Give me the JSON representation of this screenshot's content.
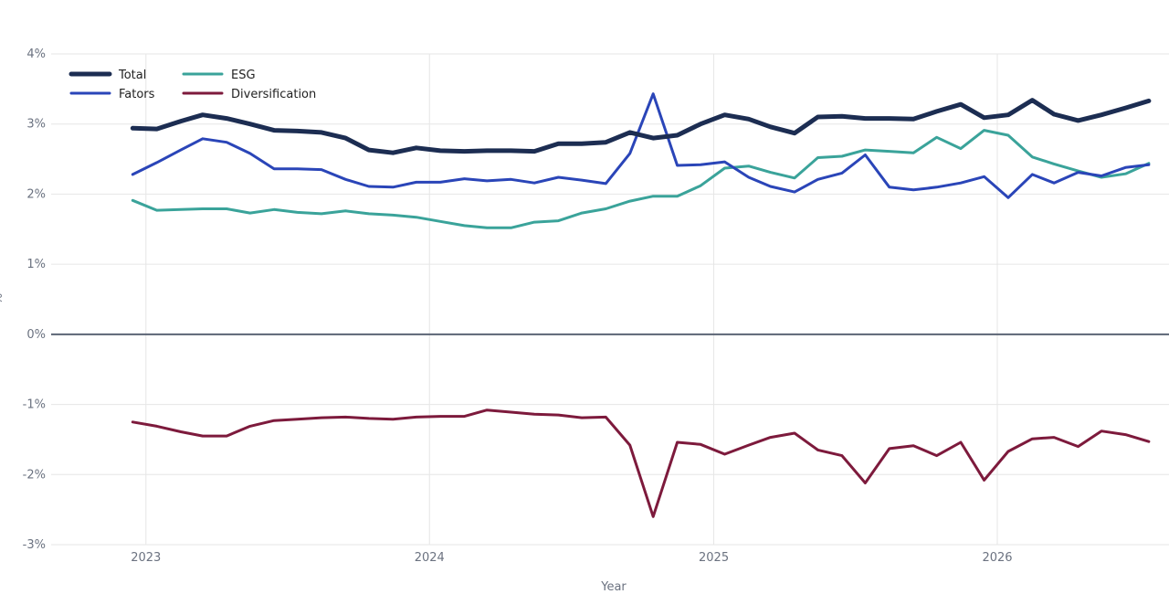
{
  "chart_data": {
    "type": "line",
    "xlabel": "Year",
    "ylabel": "%",
    "ylim": [
      -3,
      4
    ],
    "xlim": [
      "2022-09-01",
      "2026-08-10"
    ],
    "yticks": [
      -3,
      -2,
      -1,
      0,
      1,
      2,
      3,
      4
    ],
    "ytick_labels": [
      "-3%",
      "-2%",
      "-1%",
      "0%",
      "1%",
      "2%",
      "3%",
      "4%"
    ],
    "xticks": [
      "2023-01-01",
      "2024-01-01",
      "2025-01-01",
      "2026-01-01"
    ],
    "xtick_labels": [
      "2023",
      "2024",
      "2025",
      "2026"
    ],
    "grid": true,
    "legend_position": "top-left",
    "x": [
      "2022-12",
      "2023-01",
      "2023-02",
      "2023-03",
      "2023-04",
      "2023-05",
      "2023-06",
      "2023-07",
      "2023-08",
      "2023-09",
      "2023-10",
      "2023-11",
      "2023-12",
      "2024-01",
      "2024-02",
      "2024-03",
      "2024-04",
      "2024-05",
      "2024-06",
      "2024-07",
      "2024-08",
      "2024-09",
      "2024-10",
      "2024-11",
      "2024-12",
      "2025-01",
      "2025-02",
      "2025-03",
      "2025-04",
      "2025-05",
      "2025-06",
      "2025-07",
      "2025-08",
      "2025-09",
      "2025-10",
      "2025-11",
      "2025-12",
      "2026-01",
      "2026-02",
      "2026-03",
      "2026-04",
      "2026-05",
      "2026-06",
      "2026-07"
    ],
    "series": [
      {
        "name": "Total",
        "color": "#1c2d52",
        "width": 5,
        "values": [
          2.94,
          2.93,
          3.04,
          3.13,
          3.08,
          3.0,
          2.91,
          2.9,
          2.88,
          2.8,
          2.63,
          2.59,
          2.66,
          2.62,
          2.61,
          2.62,
          2.62,
          2.61,
          2.72,
          2.72,
          2.74,
          2.88,
          2.8,
          2.84,
          3.0,
          3.13,
          3.07,
          2.96,
          2.87,
          3.1,
          3.11,
          3.08,
          3.08,
          3.07,
          3.18,
          3.28,
          3.09,
          3.13,
          3.34,
          3.14,
          3.05,
          3.13,
          3.23,
          3.33
        ]
      },
      {
        "name": "Fators",
        "color": "#2a45b8",
        "width": 3,
        "values": [
          2.28,
          2.45,
          2.63,
          2.79,
          2.74,
          2.58,
          2.36,
          2.36,
          2.35,
          2.21,
          2.11,
          2.1,
          2.17,
          2.17,
          2.22,
          2.19,
          2.21,
          2.16,
          2.24,
          2.2,
          2.15,
          2.58,
          3.43,
          2.41,
          2.42,
          2.46,
          2.24,
          2.11,
          2.03,
          2.21,
          2.3,
          2.56,
          2.1,
          2.06,
          2.1,
          2.16,
          2.25,
          1.95,
          2.28,
          2.16,
          2.31,
          2.26,
          2.38,
          2.42
        ]
      },
      {
        "name": "ESG",
        "color": "#3aa39a",
        "width": 3,
        "values": [
          1.91,
          1.77,
          1.78,
          1.79,
          1.79,
          1.73,
          1.78,
          1.74,
          1.72,
          1.76,
          1.72,
          1.7,
          1.67,
          1.61,
          1.55,
          1.52,
          1.52,
          1.6,
          1.62,
          1.73,
          1.79,
          1.9,
          1.97,
          1.97,
          2.12,
          2.37,
          2.4,
          2.31,
          2.23,
          2.52,
          2.54,
          2.63,
          2.61,
          2.59,
          2.81,
          2.65,
          2.91,
          2.84,
          2.53,
          2.43,
          2.33,
          2.24,
          2.29,
          2.44
        ]
      },
      {
        "name": "Diversification",
        "color": "#7d1a3c",
        "width": 3,
        "values": [
          -1.25,
          -1.31,
          -1.39,
          -1.45,
          -1.45,
          -1.31,
          -1.23,
          -1.21,
          -1.19,
          -1.18,
          -1.2,
          -1.21,
          -1.18,
          -1.17,
          -1.17,
          -1.08,
          -1.11,
          -1.14,
          -1.15,
          -1.19,
          -1.18,
          -1.58,
          -2.6,
          -1.54,
          -1.57,
          -1.71,
          -1.58,
          -1.47,
          -1.41,
          -1.65,
          -1.73,
          -2.12,
          -1.63,
          -1.59,
          -1.73,
          -1.54,
          -2.08,
          -1.67,
          -1.49,
          -1.47,
          -1.6,
          -1.38,
          -1.43,
          -1.53
        ]
      }
    ]
  }
}
